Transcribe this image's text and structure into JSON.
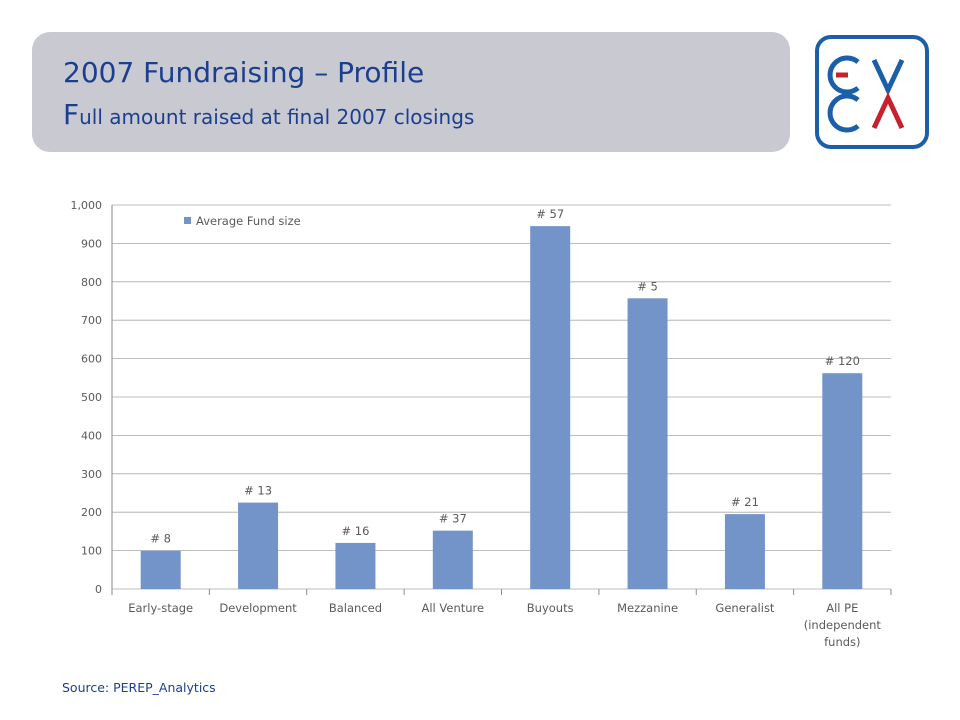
{
  "title": {
    "line1": "2007 Fundraising – Profile",
    "line2_cap": "F",
    "line2_rest": "ull amount raised at final 2007 closings"
  },
  "logo": {
    "name": "EVCA logo"
  },
  "source": "Source: PEREP_Analytics",
  "colors": {
    "bar": "#7394c8",
    "title_text": "#1b3f8f",
    "banner": "#c9c9d1",
    "logo_blue": "#1b5fa8",
    "logo_red": "#c8202c"
  },
  "chart_data": {
    "type": "bar",
    "categories": [
      "Early-stage",
      "Development",
      "Balanced",
      "All Venture",
      "Buyouts",
      "Mezzanine",
      "Generalist",
      "All PE (independent funds)"
    ],
    "category_lines": [
      [
        "Early-stage"
      ],
      [
        "Development"
      ],
      [
        "Balanced"
      ],
      [
        "All Venture"
      ],
      [
        "Buyouts"
      ],
      [
        "Mezzanine"
      ],
      [
        "Generalist"
      ],
      [
        "All PE",
        "(independent",
        "funds)"
      ]
    ],
    "series": [
      {
        "name": "Average Fund size",
        "values": [
          100,
          225,
          120,
          152,
          945,
          757,
          195,
          562
        ]
      }
    ],
    "data_labels": [
      "# 8",
      "# 13",
      "# 16",
      "# 37",
      "# 57",
      "# 5",
      "# 21",
      "# 120"
    ],
    "ylim": [
      0,
      1000
    ],
    "yticks": [
      0,
      100,
      200,
      300,
      400,
      500,
      600,
      700,
      800,
      900,
      1000
    ],
    "ytick_labels": [
      "0",
      "100",
      "200",
      "300",
      "400",
      "500",
      "600",
      "700",
      "800",
      "900",
      "1,000"
    ],
    "grid": true,
    "legend_position": "top-left"
  }
}
